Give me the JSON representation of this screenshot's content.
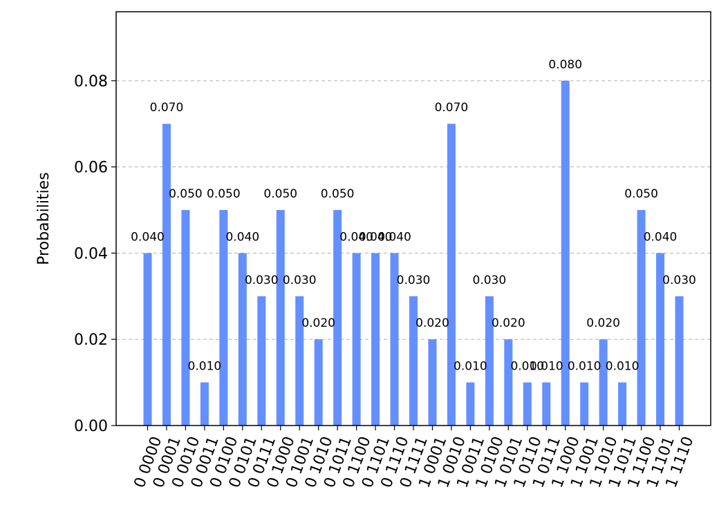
{
  "chart_data": {
    "type": "bar",
    "ylabel": "Probabilities",
    "xlabel": "",
    "title": "",
    "ylim": [
      0,
      0.096
    ],
    "yticks": [
      "0.00",
      "0.02",
      "0.04",
      "0.06",
      "0.08"
    ],
    "ytick_values": [
      0,
      0.02,
      0.04,
      0.06,
      0.08
    ],
    "grid": "horizontal dashed",
    "bar_color": "#648fff",
    "categories": [
      "0 0000",
      "0 0001",
      "0 0010",
      "0 0011",
      "0 0100",
      "0 0101",
      "0 0111",
      "0 1000",
      "0 1001",
      "0 1010",
      "0 1011",
      "0 1100",
      "0 1101",
      "0 1110",
      "0 1111",
      "1 0001",
      "1 0010",
      "1 0011",
      "1 0100",
      "1 0101",
      "1 0110",
      "1 0111",
      "1 1000",
      "1 1001",
      "1 1010",
      "1 1011",
      "1 1100",
      "1 1101",
      "1 1110"
    ],
    "values": [
      0.04,
      0.07,
      0.05,
      0.01,
      0.05,
      0.04,
      0.03,
      0.05,
      0.03,
      0.02,
      0.05,
      0.04,
      0.04,
      0.04,
      0.03,
      0.02,
      0.07,
      0.01,
      0.03,
      0.02,
      0.01,
      0.01,
      0.08,
      0.01,
      0.02,
      0.01,
      0.05,
      0.04,
      0.03
    ],
    "data_labels": [
      "0.040",
      "0.070",
      "0.050",
      "0.010",
      "0.050",
      "0.040",
      "0.030",
      "0.050",
      "0.030",
      "0.020",
      "0.050",
      "0.040",
      "0.040",
      "0.040",
      "0.030",
      "0.020",
      "0.070",
      "0.010",
      "0.030",
      "0.020",
      "0.010",
      "0.010",
      "0.080",
      "0.010",
      "0.020",
      "0.010",
      "0.050",
      "0.040",
      "0.030"
    ]
  }
}
